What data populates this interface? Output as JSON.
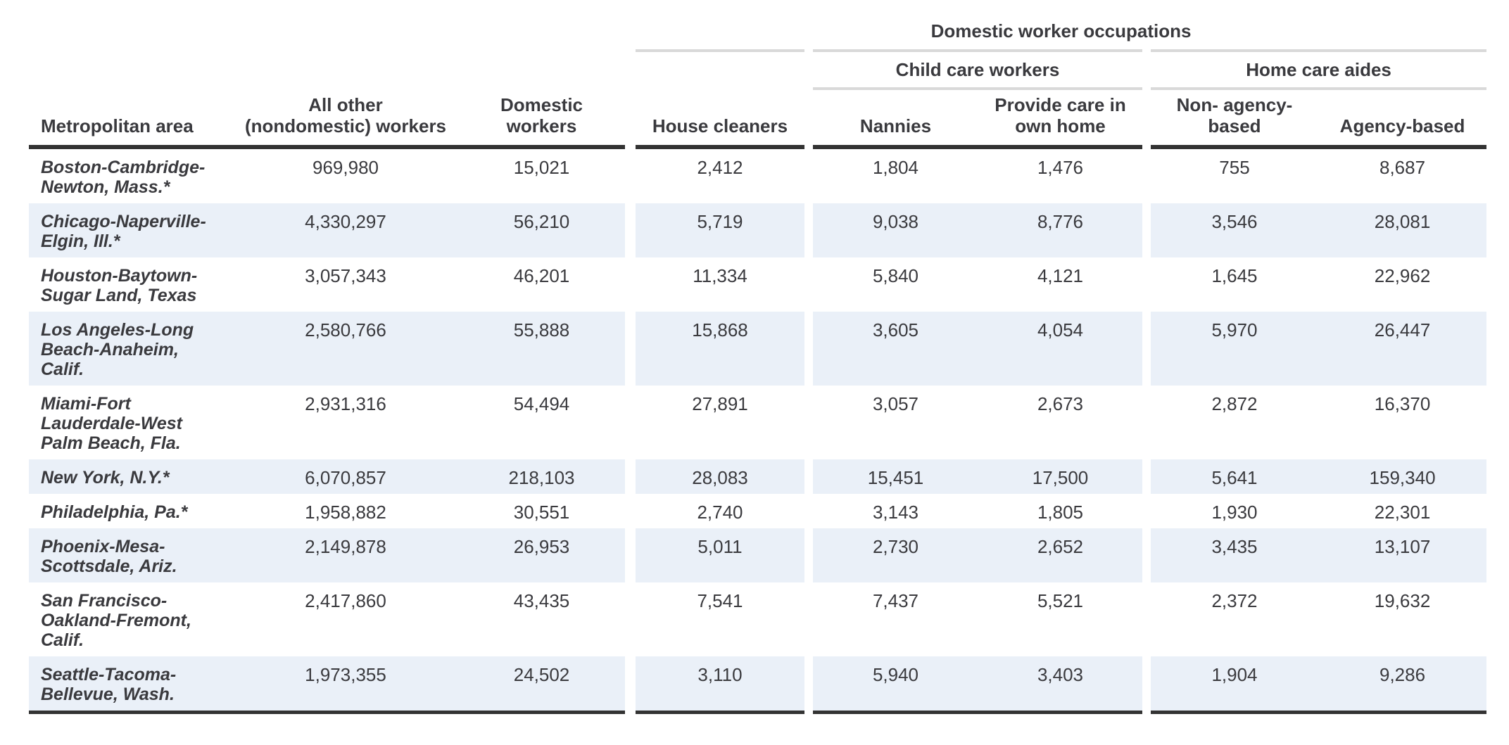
{
  "table": {
    "spanner": "Domestic worker occupations",
    "groups": {
      "child": "Child care workers",
      "home": "Home care aides"
    },
    "columns": {
      "metro": "Metropolitan area",
      "all_other": "All other\n(nondomestic) workers",
      "domestic": "Domestic workers",
      "house_cleaners": "House cleaners",
      "nannies": "Nannies",
      "provide_care": "Provide care in\nown home",
      "non_agency": "Non- agency-\nbased",
      "agency": "Agency-based"
    },
    "rows": [
      {
        "metro": "Boston-Cambridge-\nNewton, Mass.*",
        "values": [
          "969,980",
          "15,021",
          "2,412",
          "1,804",
          "1,476",
          "755",
          "8,687"
        ]
      },
      {
        "metro": "Chicago-Naperville-\nElgin, Ill.*",
        "values": [
          "4,330,297",
          "56,210",
          "5,719",
          "9,038",
          "8,776",
          "3,546",
          "28,081"
        ]
      },
      {
        "metro": "Houston-Baytown-\nSugar Land, Texas",
        "values": [
          "3,057,343",
          "46,201",
          "11,334",
          "5,840",
          "4,121",
          "1,645",
          "22,962"
        ]
      },
      {
        "metro": "Los Angeles-Long\nBeach-Anaheim,\nCalif.",
        "values": [
          "2,580,766",
          "55,888",
          "15,868",
          "3,605",
          "4,054",
          "5,970",
          "26,447"
        ]
      },
      {
        "metro": "Miami-Fort\nLauderdale-West\nPalm Beach, Fla.",
        "values": [
          "2,931,316",
          "54,494",
          "27,891",
          "3,057",
          "2,673",
          "2,872",
          "16,370"
        ]
      },
      {
        "metro": "New York, N.Y.*",
        "values": [
          "6,070,857",
          "218,103",
          "28,083",
          "15,451",
          "17,500",
          "5,641",
          "159,340"
        ]
      },
      {
        "metro": "Philadelphia, Pa.*",
        "values": [
          "1,958,882",
          "30,551",
          "2,740",
          "3,143",
          "1,805",
          "1,930",
          "22,301"
        ]
      },
      {
        "metro": "Phoenix-Mesa-\nScottsdale, Ariz.",
        "values": [
          "2,149,878",
          "26,953",
          "5,011",
          "2,730",
          "2,652",
          "3,435",
          "13,107"
        ]
      },
      {
        "metro": "San Francisco-\nOakland-Fremont,\nCalif.",
        "values": [
          "2,417,860",
          "43,435",
          "7,541",
          "7,437",
          "5,521",
          "2,372",
          "19,632"
        ]
      },
      {
        "metro": "Seattle-Tacoma-\nBellevue, Wash.",
        "values": [
          "1,973,355",
          "24,502",
          "3,110",
          "5,940",
          "3,403",
          "1,904",
          "9,286"
        ]
      }
    ]
  },
  "colors": {
    "stripe": "#eaf0f8",
    "rule_dark": "#333333",
    "rule_light": "#d9d9d9",
    "text": "#3a3a3e"
  },
  "chart_data": {
    "type": "table",
    "title": "Domestic worker occupations",
    "column_groups": [
      {
        "label": "Domestic worker occupations",
        "subgroups": [
          "House cleaners",
          "Child care workers",
          "Home care aides"
        ]
      }
    ],
    "columns": [
      "Metropolitan area",
      "All other (nondomestic) workers",
      "Domestic workers",
      "House cleaners",
      "Nannies",
      "Provide care in own home",
      "Non- agency-based",
      "Agency-based"
    ],
    "rows": [
      [
        "Boston-Cambridge-Newton, Mass.*",
        969980,
        15021,
        2412,
        1804,
        1476,
        755,
        8687
      ],
      [
        "Chicago-Naperville-Elgin, Ill.*",
        4330297,
        56210,
        5719,
        9038,
        8776,
        3546,
        28081
      ],
      [
        "Houston-Baytown-Sugar Land, Texas",
        3057343,
        46201,
        11334,
        5840,
        4121,
        1645,
        22962
      ],
      [
        "Los Angeles-Long Beach-Anaheim, Calif.",
        2580766,
        55888,
        15868,
        3605,
        4054,
        5970,
        26447
      ],
      [
        "Miami-Fort Lauderdale-West Palm Beach, Fla.",
        2931316,
        54494,
        27891,
        3057,
        2673,
        2872,
        16370
      ],
      [
        "New York, N.Y.*",
        6070857,
        218103,
        28083,
        15451,
        17500,
        5641,
        159340
      ],
      [
        "Philadelphia, Pa.*",
        1958882,
        30551,
        2740,
        3143,
        1805,
        1930,
        22301
      ],
      [
        "Phoenix-Mesa-Scottsdale, Ariz.",
        2149878,
        26953,
        5011,
        2730,
        2652,
        3435,
        13107
      ],
      [
        "San Francisco-Oakland-Fremont, Calif.",
        2417860,
        43435,
        7541,
        7437,
        5521,
        2372,
        19632
      ],
      [
        "Seattle-Tacoma-Bellevue, Wash.",
        1973355,
        24502,
        3110,
        5940,
        3403,
        1904,
        9286
      ]
    ]
  }
}
